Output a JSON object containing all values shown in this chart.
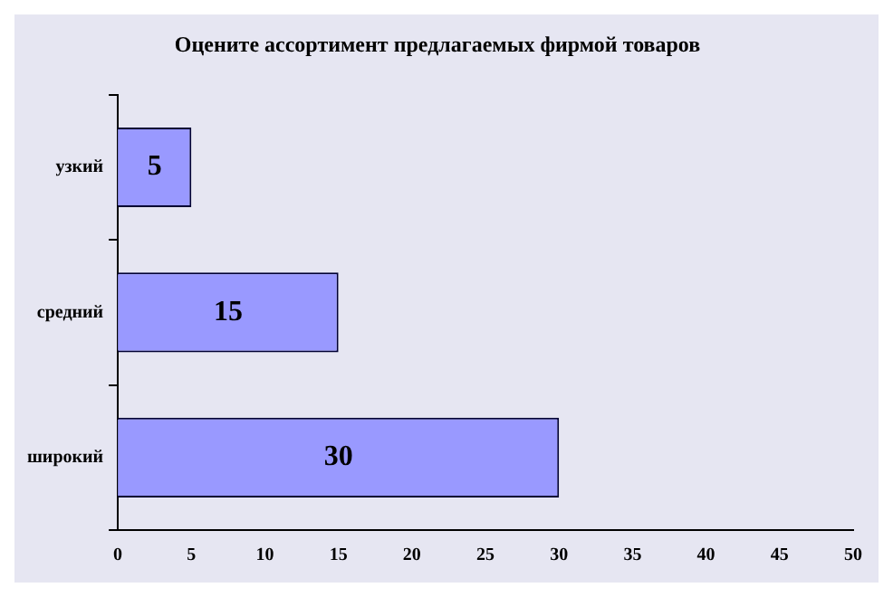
{
  "chart_data": {
    "type": "bar",
    "title": "Оцените ассортимент предлагаемых фирмой товаров",
    "orientation": "horizontal",
    "categories": [
      "узкий",
      "средний",
      "широкий"
    ],
    "values": [
      5,
      15,
      30
    ],
    "color": "#9999ff",
    "xlim": [
      0,
      50
    ],
    "xticks": [
      0,
      5,
      10,
      15,
      20,
      25,
      30,
      35,
      40,
      45,
      50
    ],
    "data_labels": true,
    "grid": false,
    "legend": false
  }
}
